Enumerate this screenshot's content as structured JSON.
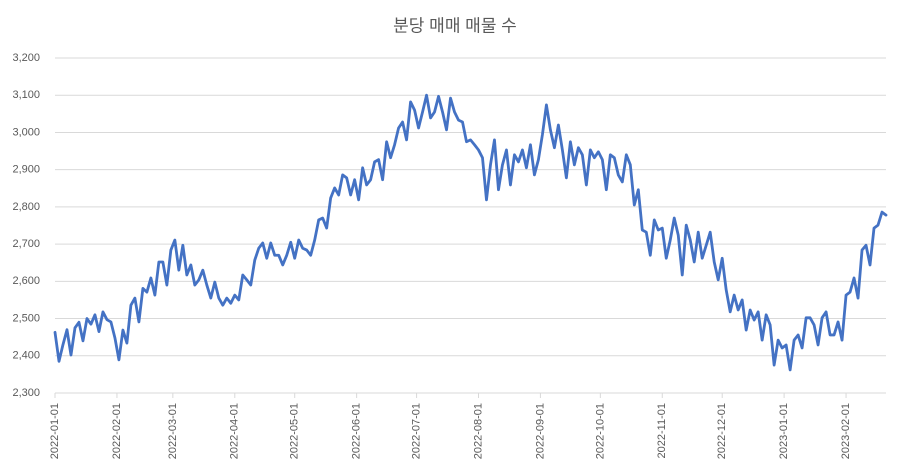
{
  "chart_data": {
    "type": "line",
    "title": "분당 매매 매물 수",
    "x": [
      "2022-01-01",
      "2022-01-03",
      "2022-01-05",
      "2022-01-07",
      "2022-01-09",
      "2022-01-11",
      "2022-01-13",
      "2022-01-15",
      "2022-01-17",
      "2022-01-19",
      "2022-01-21",
      "2022-01-23",
      "2022-01-25",
      "2022-01-27",
      "2022-01-29",
      "2022-01-31",
      "2022-02-02",
      "2022-02-04",
      "2022-02-06",
      "2022-02-08",
      "2022-02-10",
      "2022-02-12",
      "2022-02-14",
      "2022-02-16",
      "2022-02-18",
      "2022-02-20",
      "2022-02-22",
      "2022-02-24",
      "2022-02-26",
      "2022-02-28",
      "2022-03-02",
      "2022-03-04",
      "2022-03-06",
      "2022-03-08",
      "2022-03-10",
      "2022-03-12",
      "2022-03-14",
      "2022-03-16",
      "2022-03-18",
      "2022-03-20",
      "2022-03-22",
      "2022-03-24",
      "2022-03-26",
      "2022-03-28",
      "2022-03-30",
      "2022-04-01",
      "2022-04-03",
      "2022-04-05",
      "2022-04-07",
      "2022-04-09",
      "2022-04-11",
      "2022-04-13",
      "2022-04-15",
      "2022-04-17",
      "2022-04-19",
      "2022-04-21",
      "2022-04-23",
      "2022-04-25",
      "2022-04-27",
      "2022-04-29",
      "2022-05-01",
      "2022-05-03",
      "2022-05-05",
      "2022-05-07",
      "2022-05-09",
      "2022-05-11",
      "2022-05-13",
      "2022-05-15",
      "2022-05-17",
      "2022-05-19",
      "2022-05-21",
      "2022-05-23",
      "2022-05-25",
      "2022-05-27",
      "2022-05-29",
      "2022-05-31",
      "2022-06-02",
      "2022-06-04",
      "2022-06-06",
      "2022-06-08",
      "2022-06-10",
      "2022-06-12",
      "2022-06-14",
      "2022-06-16",
      "2022-06-18",
      "2022-06-20",
      "2022-06-22",
      "2022-06-24",
      "2022-06-26",
      "2022-06-28",
      "2022-06-30",
      "2022-07-02",
      "2022-07-04",
      "2022-07-06",
      "2022-07-08",
      "2022-07-10",
      "2022-07-12",
      "2022-07-14",
      "2022-07-16",
      "2022-07-18",
      "2022-07-20",
      "2022-07-22",
      "2022-07-24",
      "2022-07-26",
      "2022-07-28",
      "2022-07-30",
      "2022-08-01",
      "2022-08-03",
      "2022-08-05",
      "2022-08-07",
      "2022-08-09",
      "2022-08-11",
      "2022-08-13",
      "2022-08-15",
      "2022-08-17",
      "2022-08-19",
      "2022-08-21",
      "2022-08-23",
      "2022-08-25",
      "2022-08-27",
      "2022-08-29",
      "2022-08-31",
      "2022-09-02",
      "2022-09-04",
      "2022-09-06",
      "2022-09-08",
      "2022-09-10",
      "2022-09-12",
      "2022-09-14",
      "2022-09-16",
      "2022-09-18",
      "2022-09-20",
      "2022-09-22",
      "2022-09-24",
      "2022-09-26",
      "2022-09-28",
      "2022-09-30",
      "2022-10-02",
      "2022-10-04",
      "2022-10-06",
      "2022-10-08",
      "2022-10-10",
      "2022-10-12",
      "2022-10-14",
      "2022-10-16",
      "2022-10-18",
      "2022-10-20",
      "2022-10-22",
      "2022-10-24",
      "2022-10-26",
      "2022-10-28",
      "2022-10-30",
      "2022-11-01",
      "2022-11-03",
      "2022-11-05",
      "2022-11-07",
      "2022-11-09",
      "2022-11-11",
      "2022-11-13",
      "2022-11-15",
      "2022-11-17",
      "2022-11-19",
      "2022-11-21",
      "2022-11-23",
      "2022-11-25",
      "2022-11-27",
      "2022-11-29",
      "2022-12-01",
      "2022-12-03",
      "2022-12-05",
      "2022-12-07",
      "2022-12-09",
      "2022-12-11",
      "2022-12-13",
      "2022-12-15",
      "2022-12-17",
      "2022-12-19",
      "2022-12-21",
      "2022-12-23",
      "2022-12-25",
      "2022-12-27",
      "2022-12-29",
      "2022-12-31",
      "2023-01-02",
      "2023-01-04",
      "2023-01-06",
      "2023-01-08",
      "2023-01-10",
      "2023-01-12",
      "2023-01-14",
      "2023-01-16",
      "2023-01-18",
      "2023-01-20",
      "2023-01-22",
      "2023-01-24",
      "2023-01-26",
      "2023-01-28",
      "2023-01-30",
      "2023-02-01",
      "2023-02-03",
      "2023-02-05",
      "2023-02-07",
      "2023-02-09",
      "2023-02-11",
      "2023-02-13",
      "2023-02-15",
      "2023-02-17",
      "2023-02-19",
      "2023-02-21"
    ],
    "series": [
      {
        "color": "#4472c4",
        "values": [
          2463,
          2385,
          2430,
          2470,
          2402,
          2475,
          2490,
          2440,
          2500,
          2485,
          2510,
          2465,
          2518,
          2497,
          2491,
          2448,
          2389,
          2469,
          2434,
          2536,
          2555,
          2491,
          2581,
          2571,
          2609,
          2563,
          2652,
          2652,
          2590,
          2684,
          2711,
          2630,
          2697,
          2617,
          2644,
          2590,
          2604,
          2630,
          2590,
          2555,
          2598,
          2555,
          2536,
          2555,
          2541,
          2563,
          2550,
          2617,
          2604,
          2590,
          2657,
          2689,
          2703,
          2662,
          2703,
          2670,
          2670,
          2644,
          2670,
          2705,
          2662,
          2711,
          2689,
          2684,
          2670,
          2711,
          2765,
          2770,
          2743,
          2824,
          2851,
          2832,
          2886,
          2878,
          2832,
          2873,
          2819,
          2905,
          2859,
          2873,
          2921,
          2927,
          2873,
          2975,
          2932,
          2967,
          3012,
          3028,
          2980,
          3082,
          3060,
          3012,
          3055,
          3100,
          3039,
          3055,
          3097,
          3055,
          3007,
          3092,
          3055,
          3033,
          3028,
          2975,
          2980,
          2967,
          2953,
          2932,
          2819,
          2913,
          2980,
          2846,
          2913,
          2953,
          2859,
          2940,
          2921,
          2953,
          2905,
          2967,
          2886,
          2927,
          2994,
          3074,
          3007,
          2959,
          3020,
          2953,
          2878,
          2975,
          2913,
          2959,
          2940,
          2859,
          2953,
          2932,
          2948,
          2927,
          2846,
          2940,
          2932,
          2886,
          2867,
          2940,
          2913,
          2805,
          2846,
          2738,
          2732,
          2670,
          2765,
          2738,
          2743,
          2662,
          2711,
          2770,
          2724,
          2617,
          2751,
          2711,
          2652,
          2732,
          2662,
          2697,
          2732,
          2652,
          2604,
          2662,
          2577,
          2518,
          2563,
          2523,
          2550,
          2469,
          2523,
          2496,
          2518,
          2442,
          2510,
          2483,
          2375,
          2442,
          2421,
          2429,
          2362,
          2442,
          2456,
          2421,
          2502,
          2502,
          2483,
          2429,
          2502,
          2518,
          2456,
          2456,
          2491,
          2442,
          2563,
          2571,
          2609,
          2555,
          2684,
          2697,
          2644,
          2743,
          2751,
          2786,
          2778
        ]
      }
    ],
    "xlim": [
      "2022-01-01",
      "2023-02-21"
    ],
    "xticks": [
      "2022-01-01",
      "2022-02-01",
      "2022-03-01",
      "2022-04-01",
      "2022-05-01",
      "2022-06-01",
      "2022-07-01",
      "2022-08-01",
      "2022-09-01",
      "2022-10-01",
      "2022-11-01",
      "2022-12-01",
      "2023-01-01",
      "2023-02-01"
    ],
    "ylim": [
      2300,
      3200
    ],
    "yticks": [
      {
        "value": 2300,
        "label": "2,300"
      },
      {
        "value": 2400,
        "label": "2,400"
      },
      {
        "value": 2500,
        "label": "2,500"
      },
      {
        "value": 2600,
        "label": "2,600"
      },
      {
        "value": 2700,
        "label": "2,700"
      },
      {
        "value": 2800,
        "label": "2,800"
      },
      {
        "value": 2900,
        "label": "2,900"
      },
      {
        "value": 3000,
        "label": "3,000"
      },
      {
        "value": 3100,
        "label": "3,100"
      },
      {
        "value": 3200,
        "label": "3,200"
      }
    ],
    "grid": true
  }
}
